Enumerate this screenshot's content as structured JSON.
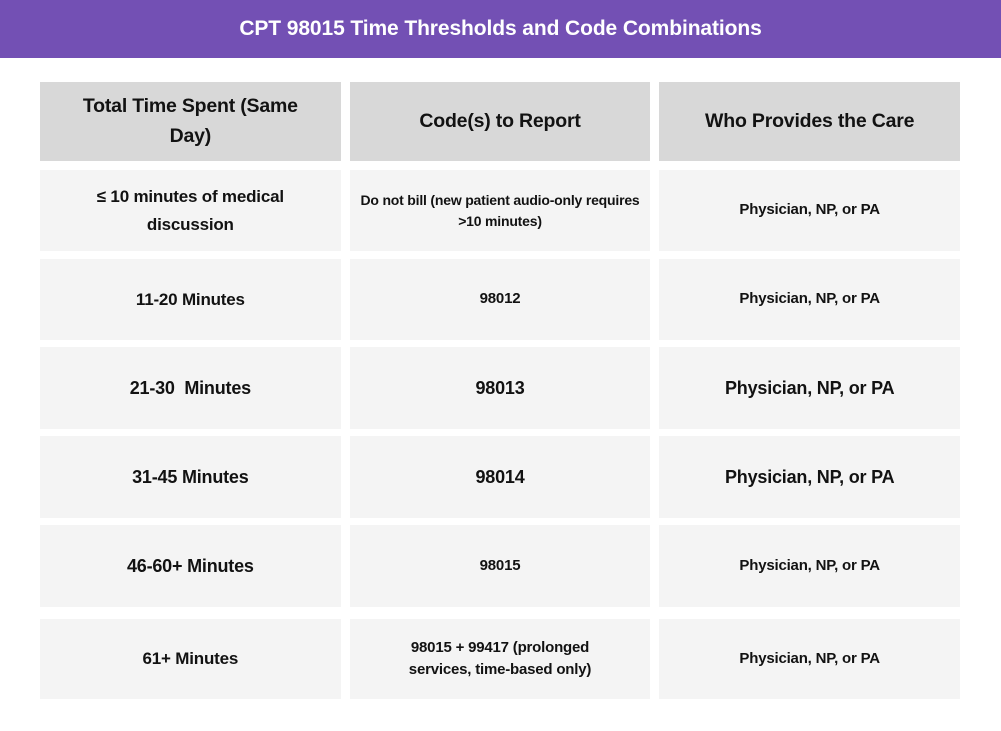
{
  "banner": {
    "title": "CPT 98015 Time Thresholds and Code Combinations"
  },
  "colors": {
    "banner_bg": "#7350B4",
    "header_cell_bg": "#D8D8D8",
    "row_cell_bg": "#F4F4F4",
    "title_text": "#FFFFFF",
    "body_text": "#121212"
  },
  "table": {
    "headers": [
      "Total Time Spent (Same Day)",
      "Code(s) to Report",
      "Who Provides the Care"
    ],
    "rows": [
      {
        "time": "≤ 10 minutes of medical discussion",
        "code": "Do not bill (new patient audio-only requires >10 minutes)",
        "provider": "Physician, NP, or PA"
      },
      {
        "time": "11-20 Minutes",
        "code": "98012",
        "provider": "Physician, NP, or PA"
      },
      {
        "time": "21-30  Minutes",
        "code": "98013",
        "provider": "Physician, NP, or PA"
      },
      {
        "time": "31-45 Minutes",
        "code": "98014",
        "provider": "Physician, NP, or PA"
      },
      {
        "time": "46-60+ Minutes",
        "code": "98015",
        "provider": "Physician, NP, or PA"
      },
      {
        "time": "61+ Minutes",
        "code": "98015 + 99417 (prolonged services, time-based only)",
        "provider": "Physician, NP, or PA"
      }
    ]
  }
}
